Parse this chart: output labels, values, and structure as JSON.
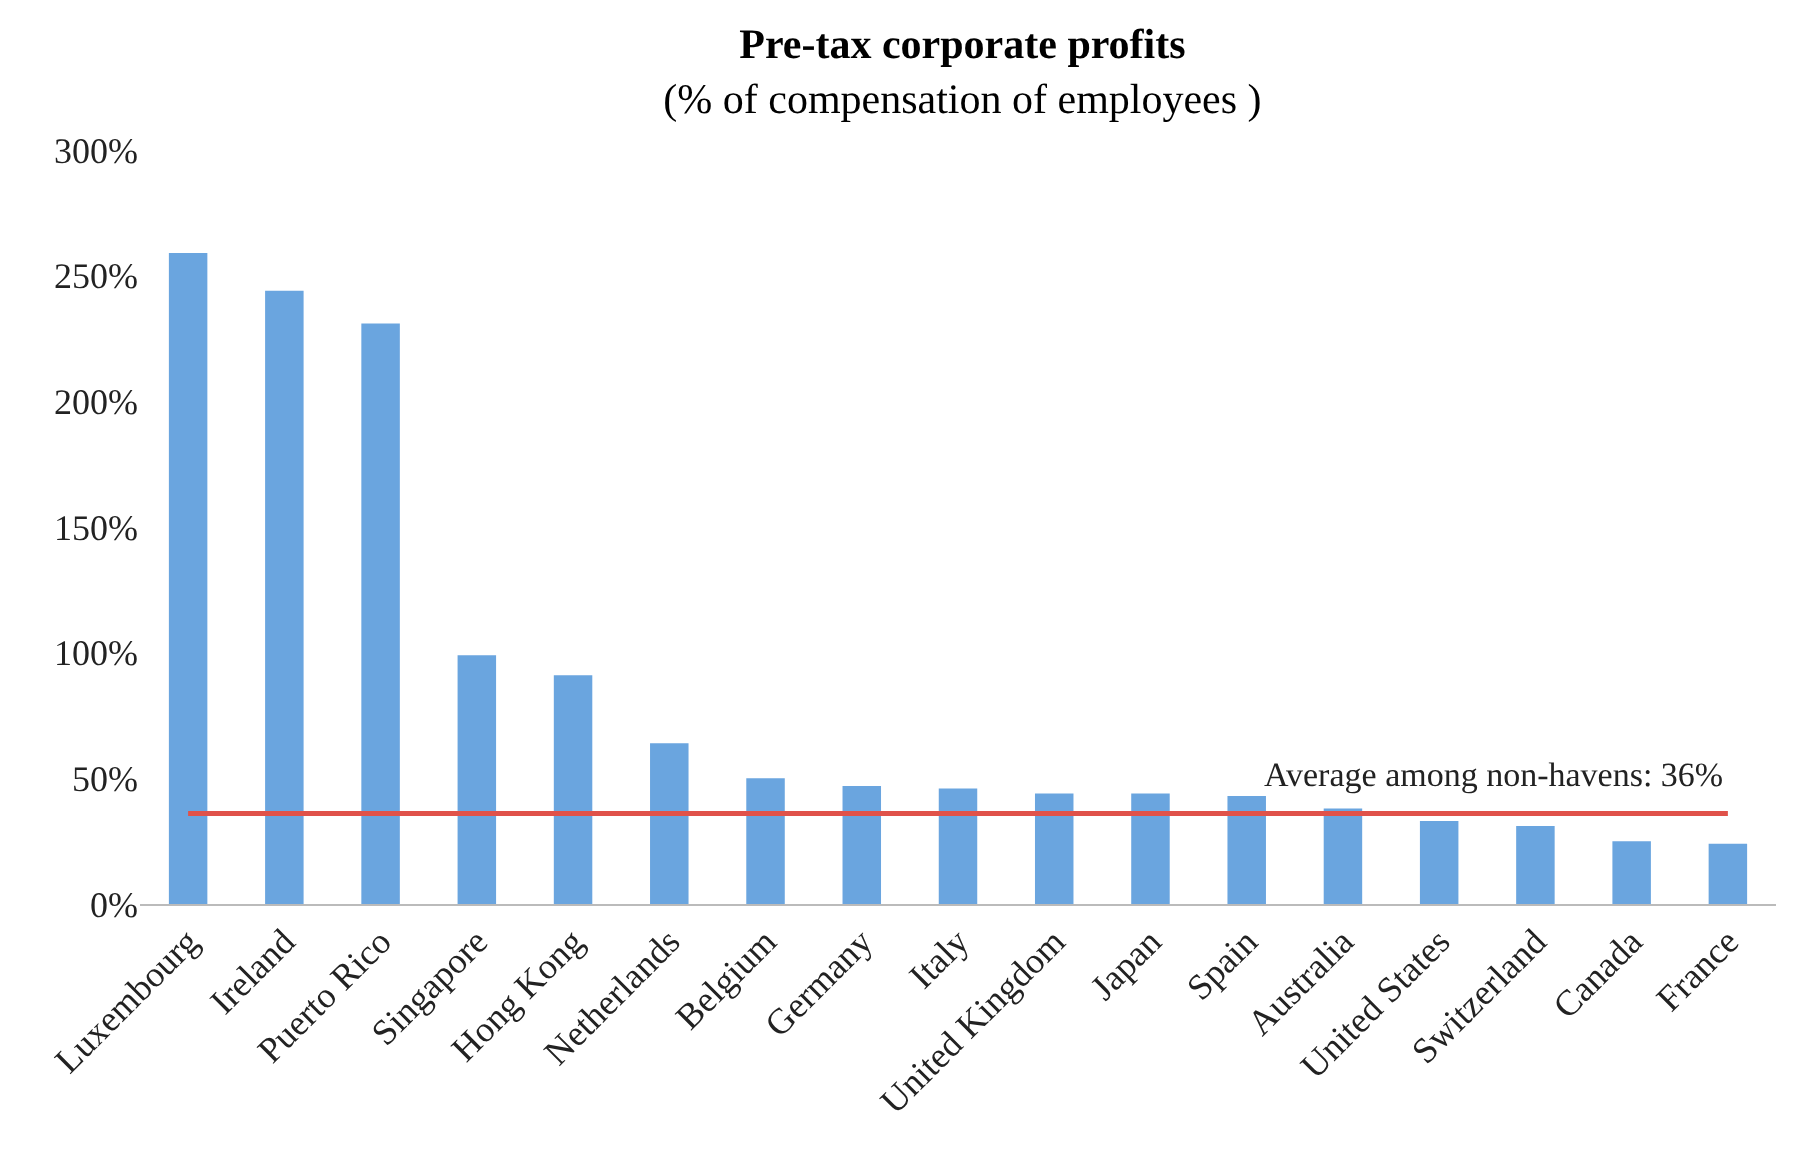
{
  "chart_data": {
    "type": "bar",
    "title": "Pre-tax corporate profits",
    "subtitle": "(% of compensation of employees )",
    "categories": [
      "Luxembourg",
      "Ireland",
      "Puerto Rico",
      "Singapore",
      "Hong Kong",
      "Netherlands",
      "Belgium",
      "Germany",
      "Italy",
      "United Kingdom",
      "Japan",
      "Spain",
      "Australia",
      "United States",
      "Switzerland",
      "Canada",
      "France"
    ],
    "values": [
      259,
      244,
      231,
      99,
      91,
      64,
      50,
      47,
      46,
      44,
      44,
      43,
      38,
      33,
      31,
      25,
      24
    ],
    "color": "#6aa5df",
    "ylim": [
      0,
      300
    ],
    "yticks": [
      {
        "value": 0,
        "label": "0%"
      },
      {
        "value": 50,
        "label": "50%"
      },
      {
        "value": 100,
        "label": "100%"
      },
      {
        "value": 150,
        "label": "150%"
      },
      {
        "value": 200,
        "label": "200%"
      },
      {
        "value": 250,
        "label": "250%"
      },
      {
        "value": 300,
        "label": "300%"
      }
    ],
    "ref_lines": [
      {
        "axis": "y",
        "value": 36,
        "label": "Average among non-havens: 36%",
        "color": "#e0524a"
      }
    ],
    "grid": false
  }
}
